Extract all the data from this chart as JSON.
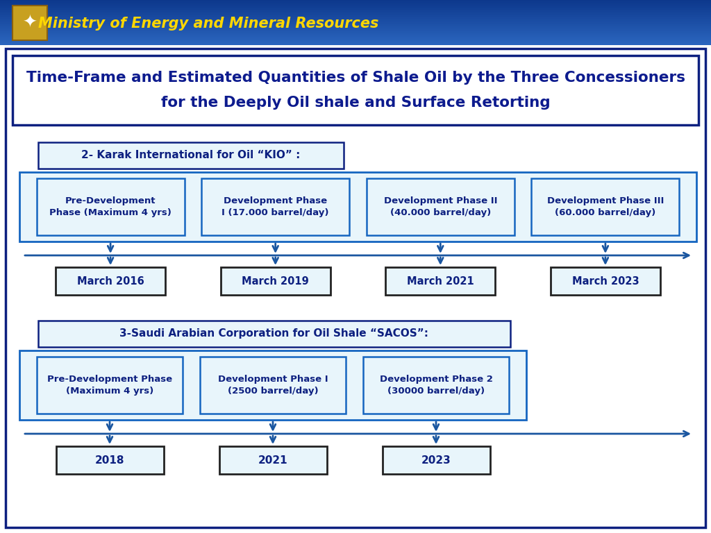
{
  "title_line1": "Time-Frame and Estimated Quantities of Shale Oil by the Three Concessioners",
  "title_line2": "for the Deeply Oil shale and Surface Retorting",
  "section1_label": "2- Karak International for Oil “KIO” :",
  "section1_phases": [
    "Pre-Development\nPhase (Maximum 4 yrs)",
    "Development Phase\nI (17.000 barrel/day)",
    "Development Phase II\n(40.000 barrel/day)",
    "Development Phase III\n(60.000 barrel/day)"
  ],
  "section1_dates": [
    "March 2016",
    "March 2019",
    "March 2021",
    "March 2023"
  ],
  "section2_label": "3-Saudi Arabian Corporation for Oil Shale “SACOS”:",
  "section2_phases": [
    "Pre-Development Phase\n(Maximum 4 yrs)",
    "Development Phase I\n(2500 barrel/day)",
    "Development Phase 2\n(30000 barrel/day)"
  ],
  "section2_dates": [
    "2018",
    "2021",
    "2023"
  ],
  "dark_blue": "#0d2080",
  "medium_blue": "#1565c0",
  "light_blue_fill": "#ddeeff",
  "lighter_blue_fill": "#e8f5fb",
  "arrow_color": "#1a56a0",
  "border_color": "#0d2080",
  "title_color": "#0d1b8e",
  "header_text_color": "#FFD700",
  "bg_color": "#ffffff",
  "header_bg": "#1a5faa"
}
